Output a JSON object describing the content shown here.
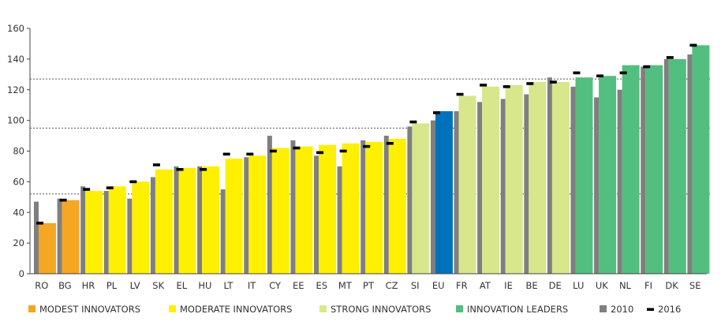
{
  "chart_data": {
    "type": "bar",
    "categories": [
      "RO",
      "BG",
      "HR",
      "PL",
      "LV",
      "SK",
      "EL",
      "HU",
      "LT",
      "IT",
      "CY",
      "EE",
      "ES",
      "MT",
      "PT",
      "CZ",
      "SI",
      "EU",
      "FR",
      "AT",
      "IE",
      "BE",
      "DE",
      "LU",
      "UK",
      "NL",
      "FI",
      "DK",
      "SE"
    ],
    "groups": [
      "modest",
      "modest",
      "moderate",
      "moderate",
      "moderate",
      "moderate",
      "moderate",
      "moderate",
      "moderate",
      "moderate",
      "moderate",
      "moderate",
      "moderate",
      "moderate",
      "moderate",
      "moderate",
      "strong",
      "eu",
      "strong",
      "strong",
      "strong",
      "strong",
      "strong",
      "leader",
      "leader",
      "leader",
      "leader",
      "leader",
      "leader"
    ],
    "series": [
      {
        "name": "2010",
        "values": [
          47,
          49,
          57,
          54,
          49,
          63,
          70,
          70,
          55,
          76,
          90,
          87,
          77,
          70,
          87,
          90,
          96,
          100,
          106,
          112,
          114,
          117,
          128,
          122,
          115,
          120,
          135,
          140,
          143
        ]
      },
      {
        "name": "2016",
        "values": [
          33,
          48,
          55,
          56,
          60,
          71,
          68,
          68,
          78,
          78,
          80,
          82,
          79,
          80,
          83,
          85,
          99,
          105,
          117,
          123,
          122,
          124,
          125,
          131,
          129,
          131,
          135,
          141,
          149
        ]
      },
      {
        "name": "bar",
        "values": [
          33,
          48,
          54,
          57,
          60,
          68,
          69,
          70,
          75,
          77,
          82,
          83,
          84,
          85,
          86,
          88,
          98,
          106,
          116,
          122,
          123,
          125,
          125,
          128,
          129,
          136,
          136,
          140,
          149
        ]
      }
    ],
    "reference_lines": [
      52,
      95,
      127
    ],
    "ylim": [
      0,
      160
    ],
    "yticks": [
      0,
      20,
      40,
      60,
      80,
      100,
      120,
      140,
      160
    ],
    "ytick_labels": [
      "0",
      "20",
      "40",
      "60",
      "80",
      "100",
      "120",
      "140",
      "160"
    ],
    "title": "",
    "xlabel": "",
    "ylabel": "",
    "grid": false,
    "legend_position": "bottom",
    "colors": {
      "modest": "#F5A623",
      "moderate": "#FFEF00",
      "strong": "#D8E68C",
      "leader": "#52BE80",
      "eu": "#0072BC",
      "bar2010": "#7F7F7F",
      "marker2016": "#000000",
      "axis": "#444444",
      "refline": "#555555"
    },
    "legend": [
      {
        "key": "modest",
        "label": "MODEST INNOVATORS",
        "kind": "swatch"
      },
      {
        "key": "moderate",
        "label": "MODERATE INNOVATORS",
        "kind": "swatch"
      },
      {
        "key": "strong",
        "label": "STRONG INNOVATORS",
        "kind": "swatch"
      },
      {
        "key": "leader",
        "label": "INNOVATION LEADERS",
        "kind": "swatch"
      },
      {
        "key": "bar2010",
        "label": "2010",
        "kind": "swatch"
      },
      {
        "key": "marker2016",
        "label": "2016",
        "kind": "dash"
      }
    ]
  }
}
